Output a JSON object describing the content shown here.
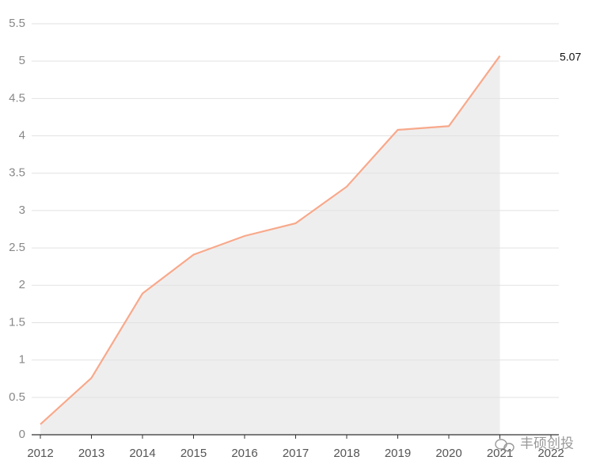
{
  "chart_data": {
    "type": "line",
    "categories": [
      "2012",
      "2013",
      "2014",
      "2015",
      "2016",
      "2017",
      "2018",
      "2019",
      "2020",
      "2021",
      "2022"
    ],
    "series": [
      {
        "color": "#f8a98b",
        "area_color": "#efeeee",
        "values": [
          0.14,
          0.76,
          1.89,
          2.41,
          2.66,
          2.83,
          3.32,
          4.08,
          4.13,
          5.07,
          null
        ]
      }
    ],
    "ylim": [
      0,
      5.5
    ],
    "yticks": [
      0,
      0.5,
      1,
      1.5,
      2,
      2.5,
      3,
      3.5,
      4,
      4.5,
      5,
      5.5
    ],
    "grid": true,
    "watermark": "丰硕创投"
  }
}
